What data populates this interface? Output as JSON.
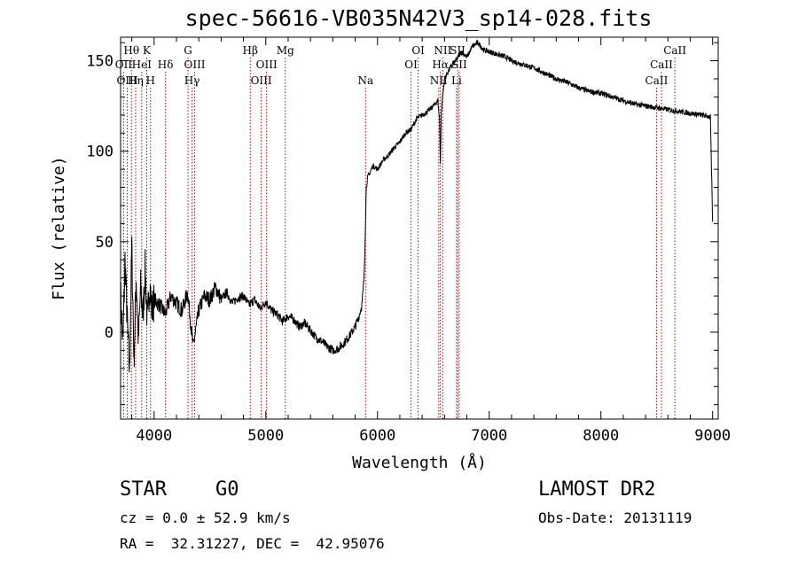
{
  "header": {
    "title": "spec-56616-VB035N42V3_sp14-028.fits"
  },
  "info": {
    "object_type": "STAR",
    "subclass": "G0",
    "survey": "LAMOST DR2",
    "redshift_line": "cz = 0.0 ± 52.9 km/s",
    "obs_date_line": "Obs-Date: 20131119",
    "coords_line": "RA =  32.31227, DEC =  42.95076"
  },
  "chart_data": {
    "type": "line",
    "title": "spec-56616-VB035N42V3_sp14-028.fits",
    "xlabel": "Wavelength (Å)",
    "ylabel": "Flux (relative)",
    "xlim": [
      3700,
      9050
    ],
    "ylim": [
      -48,
      163
    ],
    "x_ticks": [
      4000,
      5000,
      6000,
      7000,
      8000,
      9000
    ],
    "y_ticks": [
      0,
      50,
      100,
      150
    ],
    "grid": false,
    "line_color": "#000000",
    "marker_color": "#a01010",
    "series": [
      {
        "x": [
          3700,
          3720,
          3740,
          3760,
          3780,
          3800,
          3820,
          3840,
          3860,
          3880,
          3900,
          3920,
          3940,
          3960,
          3980,
          4000,
          4050,
          4100,
          4150,
          4200,
          4250,
          4300,
          4350,
          4400,
          4450,
          4500,
          4550,
          4600,
          4650,
          4700,
          4750,
          4800,
          4850,
          4900,
          4950,
          5000,
          5050,
          5100,
          5150,
          5200,
          5250,
          5300,
          5350,
          5400,
          5450,
          5500,
          5550,
          5600,
          5650,
          5700,
          5750,
          5800,
          5830,
          5860,
          5880,
          5890,
          5900,
          5910,
          5930,
          5960,
          6000,
          6050,
          6100,
          6150,
          6200,
          6250,
          6300,
          6350,
          6400,
          6450,
          6500,
          6540,
          6555,
          6563,
          6570,
          6580,
          6600,
          6650,
          6700,
          6750,
          6800,
          6850,
          6900,
          6950,
          7000,
          7050,
          7100,
          7150,
          7200,
          7300,
          7400,
          7500,
          7600,
          7700,
          7800,
          7900,
          8000,
          8100,
          8200,
          8300,
          8400,
          8500,
          8600,
          8700,
          8800,
          8900,
          8980,
          9000
        ],
        "y": [
          22,
          -8,
          40,
          5,
          -22,
          48,
          -15,
          30,
          -5,
          25,
          8,
          35,
          4,
          28,
          12,
          18,
          15,
          10,
          20,
          16,
          12,
          22,
          -8,
          12,
          20,
          18,
          25,
          18,
          22,
          16,
          19,
          20,
          15,
          18,
          13,
          17,
          12,
          10,
          6,
          9,
          7,
          3,
          5,
          1,
          -3,
          -5,
          -8,
          -10,
          -9,
          -6,
          -2,
          3,
          8,
          15,
          30,
          55,
          80,
          85,
          88,
          92,
          90,
          95,
          98,
          102,
          105,
          110,
          112,
          118,
          120,
          122,
          125,
          128,
          118,
          92,
          120,
          128,
          140,
          146,
          150,
          155,
          152,
          158,
          160,
          156,
          155,
          154,
          153,
          152,
          150,
          148,
          146,
          143,
          140,
          138,
          135,
          133,
          132,
          130,
          128,
          126,
          125,
          124,
          123,
          122,
          121,
          120,
          119,
          60
        ]
      }
    ],
    "markers": [
      {
        "label": "Hθ",
        "x": 3797,
        "row": 0
      },
      {
        "label": "K",
        "x": 3934,
        "row": 0
      },
      {
        "label": "OII",
        "x": 3727,
        "row": 1
      },
      {
        "label": "HeI",
        "x": 3889,
        "row": 1
      },
      {
        "label": "Hδ",
        "x": 4102,
        "row": 1
      },
      {
        "label": "OIII",
        "x": 3760,
        "row": 2
      },
      {
        "label": "Hη",
        "x": 3835,
        "row": 2
      },
      {
        "label": "H",
        "x": 3968,
        "row": 2
      },
      {
        "label": "G",
        "x": 4304,
        "row": 0
      },
      {
        "label": "OIII",
        "x": 4363,
        "row": 1
      },
      {
        "label": "Hγ",
        "x": 4340,
        "row": 2
      },
      {
        "label": "Hβ",
        "x": 4861,
        "row": 0
      },
      {
        "label": "Mg",
        "x": 5175,
        "row": 0
      },
      {
        "label": "OIII",
        "x": 5007,
        "row": 1
      },
      {
        "label": "OIII",
        "x": 4959,
        "row": 2
      },
      {
        "label": "Na",
        "x": 5893,
        "row": 2
      },
      {
        "label": "OI",
        "x": 6364,
        "row": 0
      },
      {
        "label": "OI",
        "x": 6300,
        "row": 1
      },
      {
        "label": "NII",
        "x": 6584,
        "row": 0
      },
      {
        "label": "SII",
        "x": 6717,
        "row": 0
      },
      {
        "label": "Hα",
        "x": 6563,
        "row": 1
      },
      {
        "label": "SII",
        "x": 6731,
        "row": 1
      },
      {
        "label": "NII",
        "x": 6548,
        "row": 2
      },
      {
        "label": "Li",
        "x": 6708,
        "row": 2
      },
      {
        "label": "CaII",
        "x": 8662,
        "row": 0
      },
      {
        "label": "CaII",
        "x": 8542,
        "row": 1
      },
      {
        "label": "CaII",
        "x": 8498,
        "row": 2
      }
    ]
  }
}
